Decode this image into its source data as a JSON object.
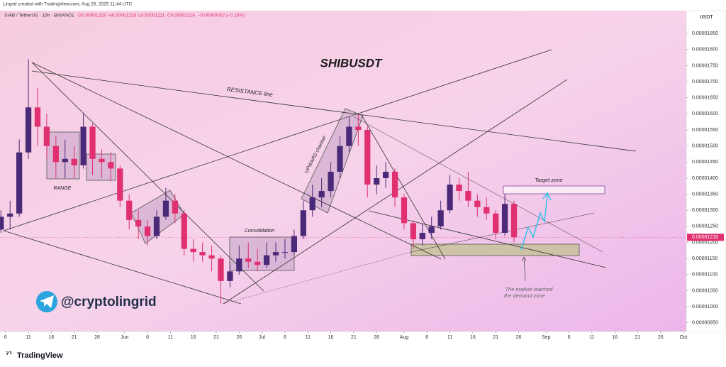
{
  "header": {
    "created": "Lingrid created with TradingView.com, Aug 26, 2025 11:44 UTC",
    "symbol": "SHIB / TetherUS · 10h · BINANCE",
    "ohlc": [
      "O0.00001219",
      "H0.00001228",
      "L0.00001211",
      "C0.00001216"
    ],
    "change": "−0.00000002 (−0.16%)"
  },
  "watermark": "@cryptolingrid",
  "footer": {
    "brand": "TradingView"
  },
  "chart_data": {
    "type": "candlestick",
    "title": "SHIBUSDT",
    "currency": "USDT",
    "annotations": [
      "RESISTANCE line",
      "RANGE",
      "UPWARD channel",
      "Consolidation",
      "Target zone",
      "The market reached",
      "the demand zone"
    ],
    "up_color": "#4a2a78",
    "down_color": "#e0306f",
    "grid": false,
    "last_price": {
      "value": 1.216e-05,
      "label": "0.00001216"
    },
    "x": [
      5,
      7,
      9,
      11,
      13,
      15,
      17,
      19,
      21,
      23,
      25,
      27,
      29,
      31,
      33,
      35,
      37,
      39,
      41,
      43,
      45,
      47,
      49,
      51,
      53,
      55,
      57,
      59,
      61,
      63,
      65,
      67,
      69,
      71,
      73,
      75,
      77,
      79,
      81,
      83,
      85,
      87,
      89,
      91,
      93,
      95,
      97,
      99,
      101,
      103,
      105,
      107,
      109,
      111,
      113,
      115,
      117
    ],
    "open": [
      1.24e-05,
      1.28e-05,
      1.29e-05,
      1.48e-05,
      1.62e-05,
      1.56e-05,
      1.5e-05,
      1.45e-05,
      1.46e-05,
      1.44e-05,
      1.56e-05,
      1.46e-05,
      1.45e-05,
      1.43e-05,
      1.33e-05,
      1.27e-05,
      1.25e-05,
      1.22e-05,
      1.28e-05,
      1.33e-05,
      1.29e-05,
      1.18e-05,
      1.17e-05,
      1.16e-05,
      1.15e-05,
      1.08e-05,
      1.11e-05,
      1.15e-05,
      1.14e-05,
      1.13e-05,
      1.16e-05,
      1.17e-05,
      1.17e-05,
      1.22e-05,
      1.3e-05,
      1.34e-05,
      1.36e-05,
      1.42e-05,
      1.5e-05,
      1.56e-05,
      1.55e-05,
      1.38e-05,
      1.4e-05,
      1.42e-05,
      1.34e-05,
      1.26e-05,
      1.21e-05,
      1.23e-05,
      1.25e-05,
      1.3e-05,
      1.38e-05,
      1.36e-05,
      1.33e-05,
      1.31e-05,
      1.29e-05,
      1.23e-05,
      1.32e-05
    ],
    "high": [
      1.3e-05,
      1.33e-05,
      1.52e-05,
      1.77e-05,
      1.68e-05,
      1.6e-05,
      1.53e-05,
      1.52e-05,
      1.5e-05,
      1.6e-05,
      1.57e-05,
      1.49e-05,
      1.48e-05,
      1.44e-05,
      1.35e-05,
      1.3e-05,
      1.27e-05,
      1.3e-05,
      1.37e-05,
      1.35e-05,
      1.3e-05,
      1.21e-05,
      1.2e-05,
      1.19e-05,
      1.16e-05,
      1.14e-05,
      1.19e-05,
      1.2e-05,
      1.18e-05,
      1.2e-05,
      1.2e-05,
      1.21e-05,
      1.24e-05,
      1.33e-05,
      1.38e-05,
      1.4e-05,
      1.45e-05,
      1.53e-05,
      1.59e-05,
      1.6e-05,
      1.56e-05,
      1.44e-05,
      1.45e-05,
      1.43e-05,
      1.35e-05,
      1.27e-05,
      1.26e-05,
      1.28e-05,
      1.33e-05,
      1.41e-05,
      1.4e-05,
      1.42e-05,
      1.35e-05,
      1.34e-05,
      1.3e-05,
      1.35e-05,
      1.33e-05
    ],
    "low": [
      1.23e-05,
      1.24e-05,
      1.28e-05,
      1.46e-05,
      1.5e-05,
      1.46e-05,
      1.4e-05,
      1.4e-05,
      1.4e-05,
      1.43e-05,
      1.41e-05,
      1.4e-05,
      1.39e-05,
      1.31e-05,
      1.24e-05,
      1.21e-05,
      1.19e-05,
      1.21e-05,
      1.27e-05,
      1.26e-05,
      1.16e-05,
      1.14e-05,
      1.14e-05,
      1.11e-05,
      1.01e-05,
      1.06e-05,
      1.1e-05,
      1.12e-05,
      1.11e-05,
      1.12e-05,
      1.14e-05,
      1.15e-05,
      1.16e-05,
      1.21e-05,
      1.28e-05,
      1.31e-05,
      1.34e-05,
      1.4e-05,
      1.48e-05,
      1.5e-05,
      1.34e-05,
      1.35e-05,
      1.37e-05,
      1.31e-05,
      1.24e-05,
      1.18e-05,
      1.19e-05,
      1.21e-05,
      1.24e-05,
      1.29e-05,
      1.33e-05,
      1.31e-05,
      1.28e-05,
      1.27e-05,
      1.21e-05,
      1.22e-05,
      1.2e-05
    ],
    "close": [
      1.28e-05,
      1.29e-05,
      1.48e-05,
      1.62e-05,
      1.56e-05,
      1.5e-05,
      1.45e-05,
      1.46e-05,
      1.44e-05,
      1.56e-05,
      1.46e-05,
      1.45e-05,
      1.43e-05,
      1.33e-05,
      1.27e-05,
      1.25e-05,
      1.22e-05,
      1.28e-05,
      1.33e-05,
      1.29e-05,
      1.18e-05,
      1.17e-05,
      1.16e-05,
      1.15e-05,
      1.08e-05,
      1.11e-05,
      1.15e-05,
      1.14e-05,
      1.13e-05,
      1.16e-05,
      1.17e-05,
      1.17e-05,
      1.22e-05,
      1.3e-05,
      1.34e-05,
      1.36e-05,
      1.42e-05,
      1.5e-05,
      1.56e-05,
      1.55e-05,
      1.38e-05,
      1.4e-05,
      1.42e-05,
      1.34e-05,
      1.26e-05,
      1.21e-05,
      1.23e-05,
      1.25e-05,
      1.3e-05,
      1.38e-05,
      1.36e-05,
      1.33e-05,
      1.31e-05,
      1.29e-05,
      1.23e-05,
      1.32e-05,
      1.216e-05
    ],
    "xlim": [
      4.8,
      154.6
    ],
    "xticks": [
      6,
      11,
      16,
      21,
      26,
      {
        "value": 32,
        "label": "Jun"
      },
      {
        "value": 37,
        "label": "6"
      },
      {
        "value": 42,
        "label": "11"
      },
      {
        "value": 47,
        "label": "16"
      },
      {
        "value": 52,
        "label": "21"
      },
      {
        "value": 57,
        "label": "26"
      },
      {
        "value": 62,
        "label": "Jul"
      },
      {
        "value": 67,
        "label": "6"
      },
      {
        "value": 72,
        "label": "11"
      },
      {
        "value": 77,
        "label": "16"
      },
      {
        "value": 82,
        "label": "21"
      },
      {
        "value": 87,
        "label": "26"
      },
      {
        "value": 93,
        "label": "Aug"
      },
      {
        "value": 98,
        "label": "6"
      },
      {
        "value": 103,
        "label": "11"
      },
      {
        "value": 108,
        "label": "16"
      },
      {
        "value": 113,
        "label": "21"
      },
      {
        "value": 118,
        "label": "26"
      },
      {
        "value": 124,
        "label": "Sep"
      },
      {
        "value": 129,
        "label": "6"
      },
      {
        "value": 134,
        "label": "11"
      },
      {
        "value": 139,
        "label": "16"
      },
      {
        "value": 144,
        "label": "21"
      },
      {
        "value": 149,
        "label": "26"
      },
      {
        "value": 154,
        "label": "Oct"
      }
    ],
    "ylim": [
      9.23e-06,
      1.921e-05
    ],
    "yticks": [
      {
        "value": 9.5e-06,
        "label": "0.00000950"
      },
      {
        "value": 1e-05,
        "label": "0.00001000"
      },
      {
        "value": 1.05e-05,
        "label": "0.00001050"
      },
      {
        "value": 1.1e-05,
        "label": "0.00001100"
      },
      {
        "value": 1.15e-05,
        "label": "0.00001150"
      },
      {
        "value": 1.2e-05,
        "label": "0.00001200"
      },
      {
        "value": 1.25e-05,
        "label": "0.00001250"
      },
      {
        "value": 1.3e-05,
        "label": "0.00001300"
      },
      {
        "value": 1.35e-05,
        "label": "0.00001350"
      },
      {
        "value": 1.4e-05,
        "label": "0.00001400"
      },
      {
        "value": 1.45e-05,
        "label": "0.00001450"
      },
      {
        "value": 1.5e-05,
        "label": "0.00001500"
      },
      {
        "value": 1.55e-05,
        "label": "0.00001550"
      },
      {
        "value": 1.6e-05,
        "label": "0.00001600"
      },
      {
        "value": 1.65e-05,
        "label": "0.00001650"
      },
      {
        "value": 1.7e-05,
        "label": "0.00001700"
      },
      {
        "value": 1.75e-05,
        "label": "0.00001750"
      },
      {
        "value": 1.8e-05,
        "label": "0.00001800"
      },
      {
        "value": 1.85e-05,
        "label": "0.00001850"
      }
    ]
  }
}
